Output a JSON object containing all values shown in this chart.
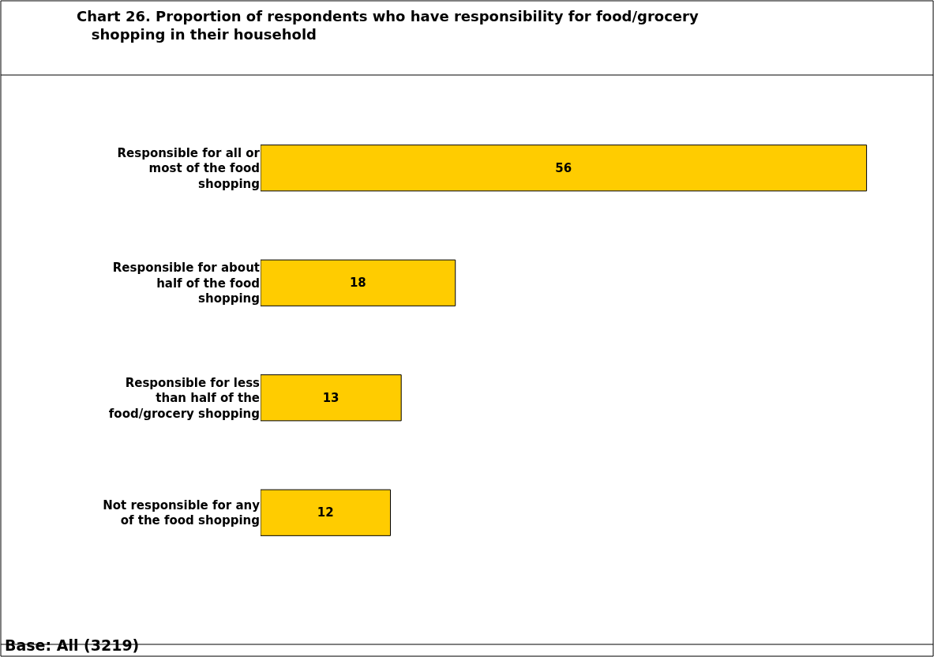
{
  "chart_data": {
    "type": "bar",
    "orientation": "horizontal",
    "title": "Chart 26. Proportion of respondents who have responsibility for food/grocery shopping in their household",
    "categories": [
      "Responsible for all or most of the food shopping",
      "Responsible for about half of the food shopping",
      "Responsible for less than half of the food/grocery shopping",
      "Not responsible for any of the food shopping"
    ],
    "values": [
      56,
      18,
      13,
      12
    ],
    "color": "#ffcc00",
    "data_labels": true,
    "tick_labels": "y",
    "annotations": [
      "Base: All (3219)"
    ]
  }
}
